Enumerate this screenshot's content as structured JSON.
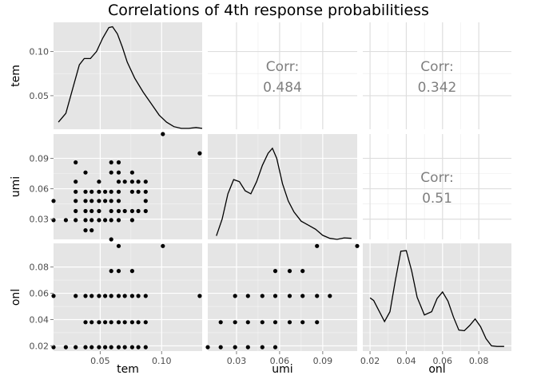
{
  "chart_data": {
    "type": "scatter",
    "title": "Correlations of 4th response probabilitiess",
    "variables": [
      {
        "name": "tem",
        "range": [
          0.012,
          0.133
        ]
      },
      {
        "name": "umi",
        "range": [
          0.01,
          0.114
        ]
      },
      {
        "name": "onl",
        "range": [
          0.016,
          0.098
        ]
      }
    ],
    "axis_labels": {
      "x": [
        "tem",
        "umi",
        "onl"
      ],
      "y": [
        "tem",
        "umi",
        "onl"
      ]
    },
    "ticks": {
      "x": {
        "tem": [
          {
            "v": 0.05,
            "label": "0.05"
          },
          {
            "v": 0.1,
            "label": "0.10"
          }
        ],
        "umi": [
          {
            "v": 0.03,
            "label": "0.03"
          },
          {
            "v": 0.06,
            "label": "0.06"
          },
          {
            "v": 0.09,
            "label": "0.09"
          }
        ],
        "onl": [
          {
            "v": 0.02,
            "label": "0.02"
          },
          {
            "v": 0.04,
            "label": "0.04"
          },
          {
            "v": 0.06,
            "label": "0.06"
          },
          {
            "v": 0.08,
            "label": "0.08"
          }
        ]
      },
      "y": {
        "tem": [
          {
            "v": 0.05,
            "label": "0.05"
          },
          {
            "v": 0.1,
            "label": "0.10"
          }
        ],
        "umi": [
          {
            "v": 0.03,
            "label": "0.03"
          },
          {
            "v": 0.06,
            "label": "0.06"
          },
          {
            "v": 0.09,
            "label": "0.09"
          }
        ],
        "onl": [
          {
            "v": 0.02,
            "label": "0.02"
          },
          {
            "v": 0.04,
            "label": "0.04"
          },
          {
            "v": 0.06,
            "label": "0.06"
          },
          {
            "v": 0.08,
            "label": "0.08"
          }
        ]
      }
    },
    "density": {
      "tem": {
        "x": [
          0.016,
          0.022,
          0.028,
          0.033,
          0.037,
          0.042,
          0.047,
          0.052,
          0.057,
          0.06,
          0.064,
          0.068,
          0.072,
          0.078,
          0.085,
          0.092,
          0.098,
          0.104,
          0.11,
          0.116,
          0.122,
          0.128,
          0.133
        ],
        "y": [
          0.02,
          0.03,
          0.06,
          0.085,
          0.092,
          0.092,
          0.1,
          0.115,
          0.127,
          0.128,
          0.12,
          0.105,
          0.088,
          0.07,
          0.054,
          0.04,
          0.028,
          0.02,
          0.015,
          0.013,
          0.013,
          0.014,
          0.013
        ]
      },
      "umi": {
        "x": [
          0.016,
          0.02,
          0.024,
          0.028,
          0.032,
          0.036,
          0.04,
          0.044,
          0.048,
          0.052,
          0.055,
          0.058,
          0.062,
          0.066,
          0.07,
          0.075,
          0.08,
          0.085,
          0.09,
          0.095,
          0.1,
          0.105,
          0.11
        ],
        "y": [
          0.0135,
          0.03,
          0.055,
          0.069,
          0.067,
          0.058,
          0.055,
          0.067,
          0.083,
          0.095,
          0.1,
          0.09,
          0.065,
          0.048,
          0.037,
          0.028,
          0.024,
          0.02,
          0.014,
          0.011,
          0.01,
          0.0115,
          0.011
        ]
      },
      "onl": {
        "x": [
          0.02,
          0.022,
          0.025,
          0.028,
          0.031,
          0.034,
          0.037,
          0.04,
          0.043,
          0.046,
          0.05,
          0.054,
          0.057,
          0.06,
          0.063,
          0.066,
          0.069,
          0.072,
          0.075,
          0.078,
          0.081,
          0.084,
          0.087,
          0.09,
          0.094
        ],
        "y": [
          0.0565,
          0.0545,
          0.0465,
          0.0385,
          0.046,
          0.07,
          0.092,
          0.0925,
          0.077,
          0.057,
          0.0435,
          0.046,
          0.056,
          0.061,
          0.054,
          0.042,
          0.032,
          0.0315,
          0.0355,
          0.0405,
          0.0345,
          0.0255,
          0.02,
          0.0195,
          0.0195
        ]
      }
    },
    "correlations": [
      {
        "row": 0,
        "col": 1,
        "label": "Corr:",
        "value": "0.484"
      },
      {
        "row": 0,
        "col": 2,
        "label": "Corr:",
        "value": "0.342"
      },
      {
        "row": 1,
        "col": 2,
        "label": "Corr:",
        "value": "0.51"
      }
    ],
    "scatter_tem_umi": [
      [
        0.012,
        0.029
      ],
      [
        0.012,
        0.048
      ],
      [
        0.022,
        0.029
      ],
      [
        0.03,
        0.029
      ],
      [
        0.03,
        0.038
      ],
      [
        0.03,
        0.048
      ],
      [
        0.03,
        0.057
      ],
      [
        0.03,
        0.067
      ],
      [
        0.03,
        0.086
      ],
      [
        0.038,
        0.019
      ],
      [
        0.038,
        0.029
      ],
      [
        0.038,
        0.038
      ],
      [
        0.038,
        0.048
      ],
      [
        0.038,
        0.057
      ],
      [
        0.038,
        0.076
      ],
      [
        0.043,
        0.019
      ],
      [
        0.043,
        0.029
      ],
      [
        0.043,
        0.038
      ],
      [
        0.043,
        0.048
      ],
      [
        0.043,
        0.057
      ],
      [
        0.049,
        0.029
      ],
      [
        0.049,
        0.038
      ],
      [
        0.049,
        0.048
      ],
      [
        0.049,
        0.057
      ],
      [
        0.049,
        0.067
      ],
      [
        0.054,
        0.029
      ],
      [
        0.054,
        0.048
      ],
      [
        0.054,
        0.057
      ],
      [
        0.059,
        0.01
      ],
      [
        0.059,
        0.029
      ],
      [
        0.059,
        0.038
      ],
      [
        0.059,
        0.048
      ],
      [
        0.059,
        0.057
      ],
      [
        0.059,
        0.076
      ],
      [
        0.059,
        0.086
      ],
      [
        0.065,
        0.029
      ],
      [
        0.065,
        0.038
      ],
      [
        0.065,
        0.048
      ],
      [
        0.065,
        0.057
      ],
      [
        0.065,
        0.067
      ],
      [
        0.065,
        0.076
      ],
      [
        0.065,
        0.086
      ],
      [
        0.07,
        0.038
      ],
      [
        0.07,
        0.067
      ],
      [
        0.076,
        0.029
      ],
      [
        0.076,
        0.038
      ],
      [
        0.076,
        0.057
      ],
      [
        0.076,
        0.067
      ],
      [
        0.076,
        0.076
      ],
      [
        0.081,
        0.038
      ],
      [
        0.081,
        0.057
      ],
      [
        0.081,
        0.067
      ],
      [
        0.087,
        0.038
      ],
      [
        0.087,
        0.048
      ],
      [
        0.087,
        0.057
      ],
      [
        0.087,
        0.067
      ],
      [
        0.101,
        0.114
      ],
      [
        0.131,
        0.095
      ]
    ],
    "scatter_tem_onl": [
      [
        0.012,
        0.019
      ],
      [
        0.012,
        0.058
      ],
      [
        0.022,
        0.019
      ],
      [
        0.03,
        0.019
      ],
      [
        0.03,
        0.058
      ],
      [
        0.038,
        0.019
      ],
      [
        0.038,
        0.038
      ],
      [
        0.038,
        0.058
      ],
      [
        0.043,
        0.019
      ],
      [
        0.043,
        0.038
      ],
      [
        0.043,
        0.058
      ],
      [
        0.049,
        0.019
      ],
      [
        0.049,
        0.038
      ],
      [
        0.049,
        0.058
      ],
      [
        0.054,
        0.019
      ],
      [
        0.054,
        0.038
      ],
      [
        0.054,
        0.058
      ],
      [
        0.059,
        0.019
      ],
      [
        0.059,
        0.038
      ],
      [
        0.059,
        0.058
      ],
      [
        0.059,
        0.077
      ],
      [
        0.065,
        0.019
      ],
      [
        0.065,
        0.038
      ],
      [
        0.065,
        0.058
      ],
      [
        0.065,
        0.077
      ],
      [
        0.065,
        0.096
      ],
      [
        0.07,
        0.019
      ],
      [
        0.07,
        0.038
      ],
      [
        0.07,
        0.058
      ],
      [
        0.076,
        0.019
      ],
      [
        0.076,
        0.038
      ],
      [
        0.076,
        0.058
      ],
      [
        0.076,
        0.077
      ],
      [
        0.081,
        0.019
      ],
      [
        0.081,
        0.038
      ],
      [
        0.081,
        0.058
      ],
      [
        0.087,
        0.019
      ],
      [
        0.087,
        0.038
      ],
      [
        0.087,
        0.058
      ],
      [
        0.101,
        0.096
      ],
      [
        0.131,
        0.058
      ]
    ],
    "scatter_umi_onl": [
      [
        0.01,
        0.019
      ],
      [
        0.019,
        0.019
      ],
      [
        0.019,
        0.038
      ],
      [
        0.029,
        0.019
      ],
      [
        0.029,
        0.038
      ],
      [
        0.029,
        0.058
      ],
      [
        0.038,
        0.019
      ],
      [
        0.038,
        0.038
      ],
      [
        0.038,
        0.058
      ],
      [
        0.048,
        0.019
      ],
      [
        0.048,
        0.038
      ],
      [
        0.048,
        0.058
      ],
      [
        0.057,
        0.019
      ],
      [
        0.057,
        0.038
      ],
      [
        0.057,
        0.058
      ],
      [
        0.057,
        0.077
      ],
      [
        0.067,
        0.038
      ],
      [
        0.067,
        0.058
      ],
      [
        0.067,
        0.077
      ],
      [
        0.076,
        0.038
      ],
      [
        0.076,
        0.058
      ],
      [
        0.076,
        0.077
      ],
      [
        0.086,
        0.038
      ],
      [
        0.086,
        0.058
      ],
      [
        0.086,
        0.096
      ],
      [
        0.095,
        0.058
      ],
      [
        0.114,
        0.096
      ]
    ],
    "panel_background": "#e5e5e5",
    "grid_color": "#ffffff",
    "point_color": "#000000",
    "line_color": "#000000",
    "corr_text_color": "#7f7f7f",
    "grid": true
  }
}
